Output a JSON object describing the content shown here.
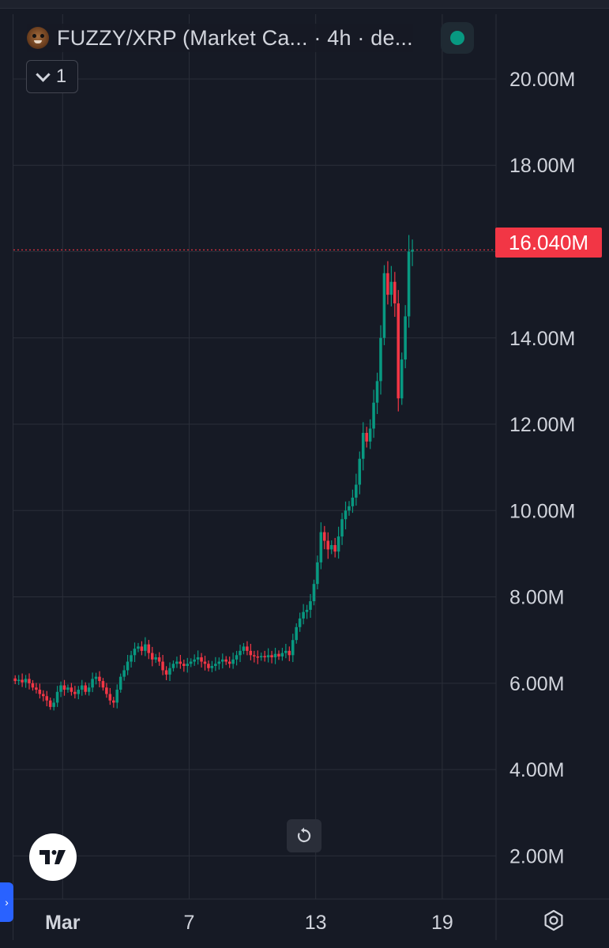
{
  "legend": {
    "title": "FUZZY/XRP (Market Ca... · 4h · de...",
    "collapse_count": "1"
  },
  "last_price_label": "16.040M",
  "icons": {
    "coin": "fuzzy-coin-icon",
    "status": "status-dot-icon",
    "collapse": "chevron-down-icon",
    "reset": "reset-icon",
    "logo": "tradingview-logo-icon",
    "settings": "settings-icon",
    "side": "side-panel-chevron-icon"
  },
  "colors": {
    "up": "#089981",
    "down": "#f23645",
    "background": "#161a25",
    "grid": "#2a2e39",
    "axis_text": "#d1d4dc",
    "price_line": "#f23645"
  },
  "chart_data": {
    "type": "candlestick",
    "timeframe": "4h",
    "ylim": [
      1000000,
      21500000
    ],
    "y_ticks": [
      {
        "value": 2000000,
        "label": "2.00M"
      },
      {
        "value": 4000000,
        "label": "4.00M"
      },
      {
        "value": 6000000,
        "label": "6.00M"
      },
      {
        "value": 8000000,
        "label": "8.00M"
      },
      {
        "value": 10000000,
        "label": "10.00M"
      },
      {
        "value": 12000000,
        "label": "12.00M"
      },
      {
        "value": 14000000,
        "label": "14.00M"
      },
      {
        "value": 18000000,
        "label": "18.00M"
      },
      {
        "value": 20000000,
        "label": "20.00M"
      }
    ],
    "x_ticks": [
      {
        "index": 14,
        "label": "Mar"
      },
      {
        "index": 50,
        "label": "7"
      },
      {
        "index": 86,
        "label": "13"
      },
      {
        "index": 122,
        "label": "19"
      }
    ],
    "last_price": 16040000,
    "closes_millions": [
      6.05,
      6.08,
      6.02,
      6.1,
      6.0,
      5.9,
      5.85,
      5.75,
      5.7,
      5.6,
      5.45,
      5.55,
      5.8,
      5.95,
      5.85,
      5.9,
      5.8,
      5.75,
      5.85,
      5.95,
      5.8,
      5.9,
      6.1,
      6.15,
      6.05,
      5.9,
      5.75,
      5.6,
      5.55,
      5.85,
      6.15,
      6.3,
      6.5,
      6.65,
      6.8,
      6.85,
      6.75,
      6.9,
      6.7,
      6.55,
      6.6,
      6.5,
      6.3,
      6.2,
      6.35,
      6.45,
      6.5,
      6.45,
      6.4,
      6.45,
      6.5,
      6.55,
      6.6,
      6.5,
      6.45,
      6.35,
      6.4,
      6.45,
      6.5,
      6.55,
      6.5,
      6.45,
      6.55,
      6.65,
      6.75,
      6.85,
      6.75,
      6.65,
      6.62,
      6.6,
      6.63,
      6.6,
      6.65,
      6.6,
      6.68,
      6.62,
      6.7,
      6.75,
      6.65,
      7.0,
      7.3,
      7.5,
      7.65,
      7.7,
      7.9,
      8.3,
      8.8,
      9.5,
      9.3,
      9.1,
      9.2,
      9.05,
      9.4,
      9.8,
      10.0,
      10.1,
      10.3,
      10.6,
      11.2,
      11.8,
      11.6,
      11.9,
      12.5,
      13.0,
      14.0,
      15.5,
      15.0,
      15.3,
      14.8,
      12.6,
      13.5,
      14.5,
      16.0,
      16.04
    ]
  }
}
